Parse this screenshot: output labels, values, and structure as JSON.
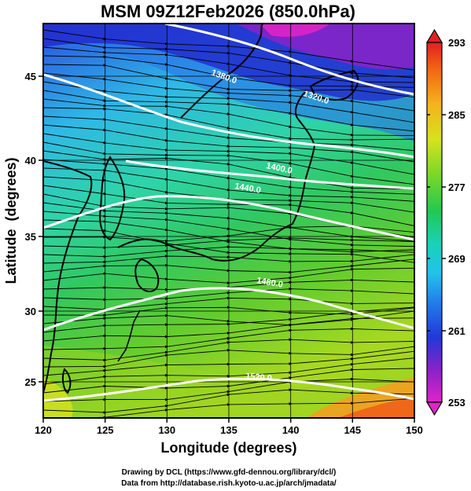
{
  "title": "MSM 09Z12Feb2026 (850.0hPa)",
  "xlabel": "Longitude (degrees)",
  "ylabel": "Latitude  (degrees)",
  "x_ticks": [
    "120",
    "125",
    "130",
    "135",
    "140",
    "145",
    "150"
  ],
  "y_ticks": [
    "25",
    "30",
    "35",
    "40",
    "45"
  ],
  "colorbar_ticks": [
    "293",
    "285",
    "277",
    "269",
    "261",
    "253"
  ],
  "contour_labels": [
    "1380.0",
    "1320.0",
    "1400.0",
    "1440.0",
    "1480.0",
    "1520.0"
  ],
  "credits": [
    "Drawing by DCL (https://www.gfd-dennou.org/library/dcl/)",
    "Data from http://database.rish.kyoto-u.ac.jp/arch/jmadata/"
  ],
  "chart_data": {
    "type": "heatmap",
    "field": "temperature (K) with geopotential height contours and wind streamlines",
    "xlim": [
      120,
      150
    ],
    "ylim": [
      22.5,
      47.6
    ],
    "color_range": [
      253,
      293
    ],
    "contour_levels": [
      1320,
      1380,
      1400,
      1440,
      1480,
      1520
    ],
    "grid": true,
    "colorbar": "right"
  }
}
